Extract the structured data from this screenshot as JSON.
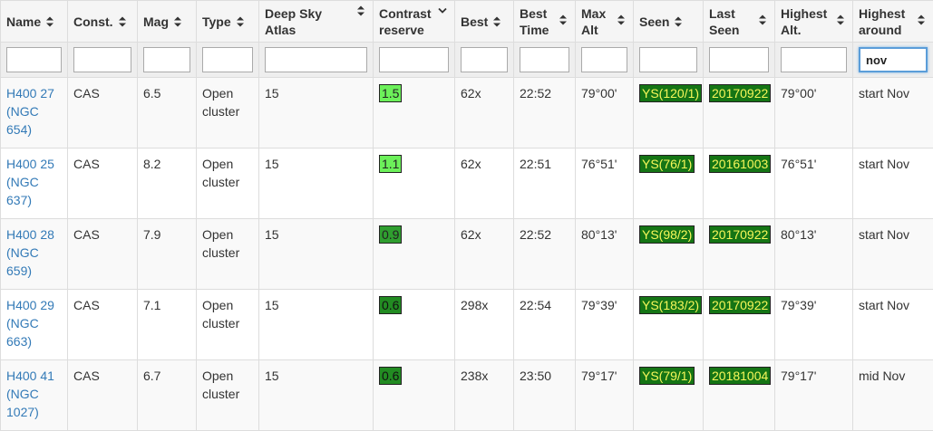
{
  "columns": [
    {
      "key": "name",
      "label": "Name"
    },
    {
      "key": "const",
      "label": "Const."
    },
    {
      "key": "mag",
      "label": "Mag"
    },
    {
      "key": "type",
      "label": "Type"
    },
    {
      "key": "atlas",
      "label": "Deep Sky Atlas"
    },
    {
      "key": "contrast",
      "label": "Contrast reserve"
    },
    {
      "key": "best",
      "label": "Best"
    },
    {
      "key": "best_time",
      "label": "Best Time"
    },
    {
      "key": "max_alt",
      "label": "Max Alt"
    },
    {
      "key": "seen",
      "label": "Seen"
    },
    {
      "key": "last_seen",
      "label": "Last Seen"
    },
    {
      "key": "highest_alt",
      "label": "Highest Alt."
    },
    {
      "key": "highest_around",
      "label": "Highest around"
    }
  ],
  "filters": [
    "",
    "",
    "",
    "",
    "",
    "",
    "",
    "",
    "",
    "",
    "",
    "",
    "nov"
  ],
  "rows": [
    {
      "name": "H400 27 (NGC 654)",
      "const": "CAS",
      "mag": "6.5",
      "type": "Open cluster",
      "atlas": "15",
      "contrast": "1.5",
      "best": "62x",
      "best_time": "22:52",
      "max_alt": "79°00'",
      "seen": "YS(120/1)",
      "last_seen": "20170922",
      "highest_alt": "79°00'",
      "highest_around": "start Nov"
    },
    {
      "name": "H400 25 (NGC 637)",
      "const": "CAS",
      "mag": "8.2",
      "type": "Open cluster",
      "atlas": "15",
      "contrast": "1.1",
      "best": "62x",
      "best_time": "22:51",
      "max_alt": "76°51'",
      "seen": "YS(76/1)",
      "last_seen": "20161003",
      "highest_alt": "76°51'",
      "highest_around": "start Nov"
    },
    {
      "name": "H400 28 (NGC 659)",
      "const": "CAS",
      "mag": "7.9",
      "type": "Open cluster",
      "atlas": "15",
      "contrast": "0.9",
      "best": "62x",
      "best_time": "22:52",
      "max_alt": "80°13'",
      "seen": "YS(98/2)",
      "last_seen": "20170922",
      "highest_alt": "80°13'",
      "highest_around": "start Nov"
    },
    {
      "name": "H400 29 (NGC 663)",
      "const": "CAS",
      "mag": "7.1",
      "type": "Open cluster",
      "atlas": "15",
      "contrast": "0.6",
      "best": "298x",
      "best_time": "22:54",
      "max_alt": "79°39'",
      "seen": "YS(183/2)",
      "last_seen": "20170922",
      "highest_alt": "79°39'",
      "highest_around": "start Nov"
    },
    {
      "name": "H400 41 (NGC 1027)",
      "const": "CAS",
      "mag": "6.7",
      "type": "Open cluster",
      "atlas": "15",
      "contrast": "0.6",
      "best": "238x",
      "best_time": "23:50",
      "max_alt": "79°17'",
      "seen": "YS(79/1)",
      "last_seen": "20181004",
      "highest_alt": "79°17'",
      "highest_around": "mid Nov"
    }
  ],
  "colors": {
    "link": "#337ab7",
    "contrast_high": "#6cf05a",
    "contrast_mid": "#2f9e2f",
    "contrast_low": "#228b22",
    "seen_bg": "#157515",
    "seen_text": "#f7f75a"
  },
  "icons": {
    "sort": "sort-updown-icon",
    "sort_desc": "sort-down-icon"
  }
}
